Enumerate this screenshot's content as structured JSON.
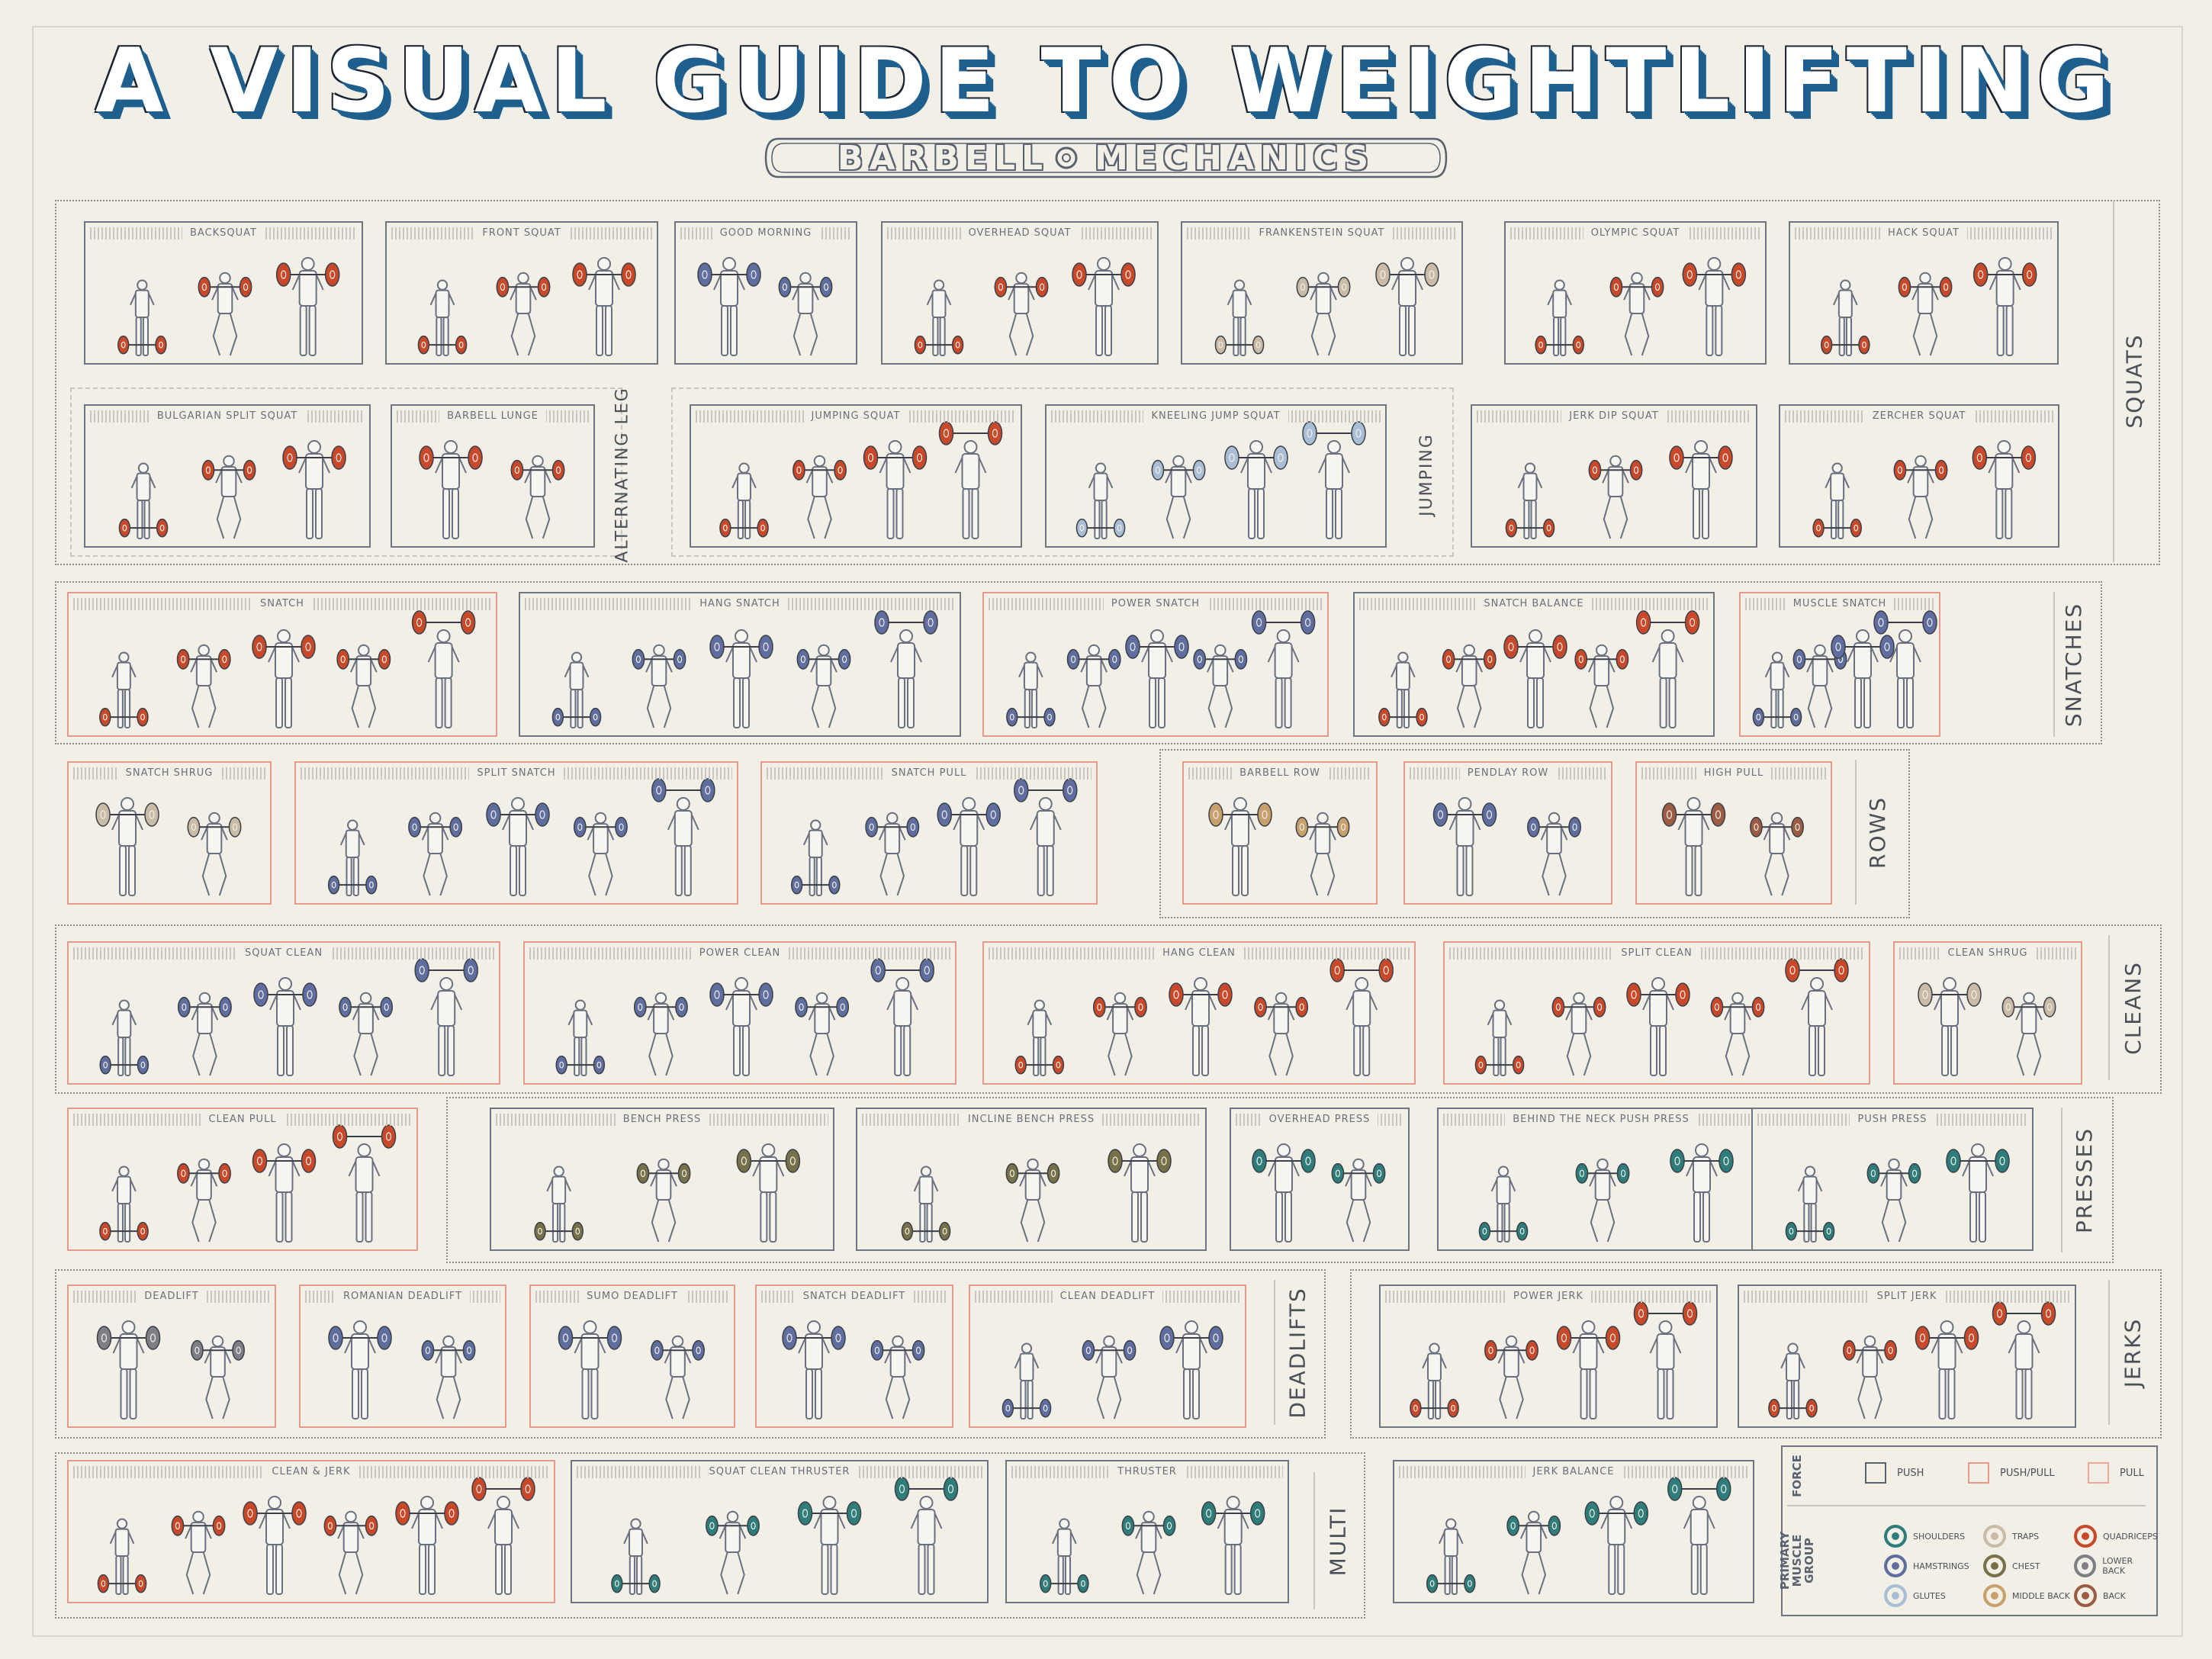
{
  "title": "A VISUAL GUIDE TO WEIGHTLIFTING",
  "subtitle_left": "BARBELL",
  "subtitle_right": "MECHANICS",
  "colors": {
    "shoulders": "#2e7d7a",
    "hamstrings": "#5f6e9e",
    "glutes": "#a9bed4",
    "traps": "#c9bba5",
    "chest": "#77714a",
    "middle_back": "#c7a06c",
    "quadriceps": "#c8492a",
    "lower_back": "#7d7f85",
    "back": "#9c5c43",
    "push_border": "#6f7480",
    "pushpull_border": "#e8998a"
  },
  "groups": [
    {
      "label": "SQUATS"
    },
    {
      "label": "SNATCHES"
    },
    {
      "label": "ROWS"
    },
    {
      "label": "CLEANS"
    },
    {
      "label": "PRESSES"
    },
    {
      "label": "DEADLIFTS"
    },
    {
      "label": "JERKS"
    },
    {
      "label": "MULTI"
    }
  ],
  "subgroups": [
    {
      "label": "ALTERNATING LEG"
    },
    {
      "label": "JUMPING"
    }
  ],
  "cards": [
    {
      "name": "BACKSQUAT",
      "muscle": "quadriceps",
      "force": "push",
      "figures": 3
    },
    {
      "name": "FRONT SQUAT",
      "muscle": "quadriceps",
      "force": "push",
      "figures": 3
    },
    {
      "name": "GOOD MORNING",
      "muscle": "hamstrings",
      "force": "push",
      "figures": 2
    },
    {
      "name": "OVERHEAD SQUAT",
      "muscle": "quadriceps",
      "force": "push",
      "figures": 3
    },
    {
      "name": "FRANKENSTEIN SQUAT",
      "muscle": "traps",
      "force": "push",
      "figures": 3
    },
    {
      "name": "OLYMPIC SQUAT",
      "muscle": "quadriceps",
      "force": "push",
      "figures": 3
    },
    {
      "name": "HACK SQUAT",
      "muscle": "quadriceps",
      "force": "push",
      "figures": 3
    },
    {
      "name": "BULGARIAN SPLIT SQUAT",
      "muscle": "quadriceps",
      "force": "push",
      "figures": 3
    },
    {
      "name": "BARBELL LUNGE",
      "muscle": "quadriceps",
      "force": "push",
      "figures": 2
    },
    {
      "name": "JUMPING SQUAT",
      "muscle": "quadriceps",
      "force": "push",
      "figures": 4
    },
    {
      "name": "KNEELING JUMP SQUAT",
      "muscle": "glutes",
      "force": "push",
      "figures": 4
    },
    {
      "name": "JERK DIP SQUAT",
      "muscle": "quadriceps",
      "force": "push",
      "figures": 3
    },
    {
      "name": "ZERCHER SQUAT",
      "muscle": "quadriceps",
      "force": "push",
      "figures": 3
    },
    {
      "name": "SNATCH",
      "muscle": "quadriceps",
      "force": "pushpull",
      "figures": 5
    },
    {
      "name": "HANG SNATCH",
      "muscle": "hamstrings",
      "force": "push",
      "figures": 5
    },
    {
      "name": "POWER SNATCH",
      "muscle": "hamstrings",
      "force": "pushpull",
      "figures": 5
    },
    {
      "name": "SNATCH BALANCE",
      "muscle": "quadriceps",
      "force": "push",
      "figures": 5
    },
    {
      "name": "MUSCLE SNATCH",
      "muscle": "hamstrings",
      "force": "pushpull",
      "figures": 4
    },
    {
      "name": "SNATCH SHRUG",
      "muscle": "traps",
      "force": "pushpull",
      "figures": 2
    },
    {
      "name": "SPLIT SNATCH",
      "muscle": "hamstrings",
      "force": "pushpull",
      "figures": 5
    },
    {
      "name": "SNATCH PULL",
      "muscle": "hamstrings",
      "force": "pushpull",
      "figures": 4
    },
    {
      "name": "BARBELL ROW",
      "muscle": "middle_back",
      "force": "pushpull",
      "figures": 2
    },
    {
      "name": "PENDLAY ROW",
      "muscle": "hamstrings",
      "force": "pushpull",
      "figures": 2
    },
    {
      "name": "HIGH PULL",
      "muscle": "back",
      "force": "pushpull",
      "figures": 2
    },
    {
      "name": "SQUAT CLEAN",
      "muscle": "hamstrings",
      "force": "pushpull",
      "figures": 5
    },
    {
      "name": "POWER CLEAN",
      "muscle": "hamstrings",
      "force": "pushpull",
      "figures": 5
    },
    {
      "name": "HANG CLEAN",
      "muscle": "quadriceps",
      "force": "pushpull",
      "figures": 5
    },
    {
      "name": "SPLIT CLEAN",
      "muscle": "quadriceps",
      "force": "pushpull",
      "figures": 5
    },
    {
      "name": "CLEAN SHRUG",
      "muscle": "traps",
      "force": "pushpull",
      "figures": 2
    },
    {
      "name": "CLEAN PULL",
      "muscle": "quadriceps",
      "force": "pushpull",
      "figures": 4
    },
    {
      "name": "BENCH PRESS",
      "muscle": "chest",
      "force": "push",
      "figures": 3
    },
    {
      "name": "INCLINE BENCH PRESS",
      "muscle": "chest",
      "force": "push",
      "figures": 3
    },
    {
      "name": "OVERHEAD PRESS",
      "muscle": "shoulders",
      "force": "push",
      "figures": 2
    },
    {
      "name": "BEHIND THE NECK PUSH PRESS",
      "muscle": "shoulders",
      "force": "push",
      "figures": 3
    },
    {
      "name": "PUSH PRESS",
      "muscle": "shoulders",
      "force": "push",
      "figures": 3
    },
    {
      "name": "DEADLIFT",
      "muscle": "lower_back",
      "force": "pushpull",
      "figures": 2
    },
    {
      "name": "ROMANIAN DEADLIFT",
      "muscle": "hamstrings",
      "force": "pushpull",
      "figures": 2
    },
    {
      "name": "SUMO DEADLIFT",
      "muscle": "hamstrings",
      "force": "pushpull",
      "figures": 2
    },
    {
      "name": "SNATCH DEADLIFT",
      "muscle": "hamstrings",
      "force": "pushpull",
      "figures": 2
    },
    {
      "name": "CLEAN DEADLIFT",
      "muscle": "hamstrings",
      "force": "pushpull",
      "figures": 3
    },
    {
      "name": "POWER JERK",
      "muscle": "quadriceps",
      "force": "push",
      "figures": 4
    },
    {
      "name": "SPLIT JERK",
      "muscle": "quadriceps",
      "force": "push",
      "figures": 4
    },
    {
      "name": "CLEAN & JERK",
      "muscle": "quadriceps",
      "force": "pushpull",
      "figures": 6
    },
    {
      "name": "SQUAT CLEAN THRUSTER",
      "muscle": "shoulders",
      "force": "push",
      "figures": 4
    },
    {
      "name": "THRUSTER",
      "muscle": "shoulders",
      "force": "push",
      "figures": 3
    },
    {
      "name": "JERK BALANCE",
      "muscle": "shoulders",
      "force": "push",
      "figures": 4
    }
  ],
  "legend": {
    "force_label": "FORCE",
    "muscle_label": "PRIMARY MUSCLE GROUP",
    "force": [
      {
        "label": "PUSH",
        "key": "push"
      },
      {
        "label": "PUSH/PULL",
        "key": "pushpull"
      },
      {
        "label": "PULL",
        "key": "pull"
      }
    ],
    "muscles": [
      {
        "label": "SHOULDERS",
        "key": "shoulders"
      },
      {
        "label": "TRAPS",
        "key": "traps"
      },
      {
        "label": "QUADRICEPS",
        "key": "quadriceps"
      },
      {
        "label": "HAMSTRINGS",
        "key": "hamstrings"
      },
      {
        "label": "CHEST",
        "key": "chest"
      },
      {
        "label": "LOWER BACK",
        "key": "lower_back"
      },
      {
        "label": "GLUTES",
        "key": "glutes"
      },
      {
        "label": "MIDDLE BACK",
        "key": "middle_back"
      },
      {
        "label": "BACK",
        "key": "back"
      }
    ]
  }
}
